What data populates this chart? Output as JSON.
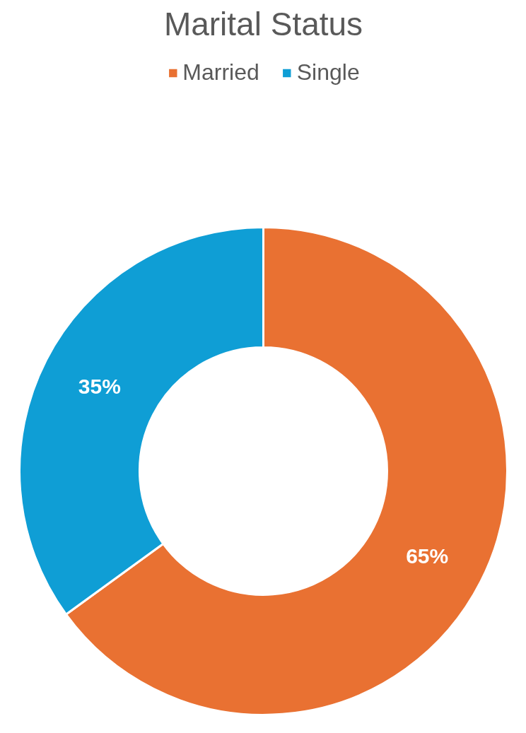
{
  "chart_data": {
    "type": "donut",
    "title": "Marital Status",
    "categories": [
      "Married",
      "Single"
    ],
    "values": [
      65,
      35
    ],
    "colors": [
      "#e97132",
      "#0f9ed5"
    ],
    "value_labels": [
      "65%",
      "35%"
    ],
    "legend": "top"
  }
}
